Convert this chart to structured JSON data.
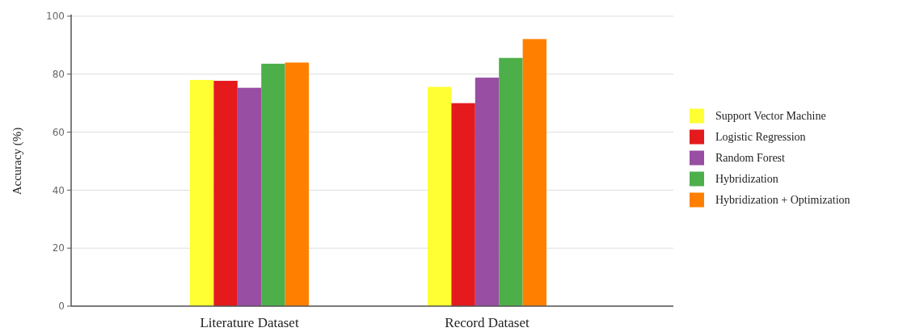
{
  "chart_data": {
    "type": "bar",
    "ylabel": "Accuracy (%)",
    "categories": [
      "Literature Dataset",
      "Record Dataset"
    ],
    "series": [
      {
        "name": "Support Vector Machine",
        "color": "#ffff33",
        "values": [
          78.0,
          75.6
        ]
      },
      {
        "name": "Logistic Regression",
        "color": "#e41a1c",
        "values": [
          77.7,
          70.0
        ]
      },
      {
        "name": "Random Forest",
        "color": "#984ea3",
        "values": [
          75.3,
          78.8
        ]
      },
      {
        "name": "Hybridization",
        "color": "#4daf4a",
        "values": [
          83.6,
          85.6
        ]
      },
      {
        "name": "Hybridization + Optimization",
        "color": "#ff7f00",
        "values": [
          84.0,
          92.1
        ]
      }
    ],
    "ylim": [
      0,
      100
    ],
    "yticks": [
      0,
      20,
      40,
      60,
      80,
      100
    ],
    "grid": "y",
    "legend": "right"
  }
}
